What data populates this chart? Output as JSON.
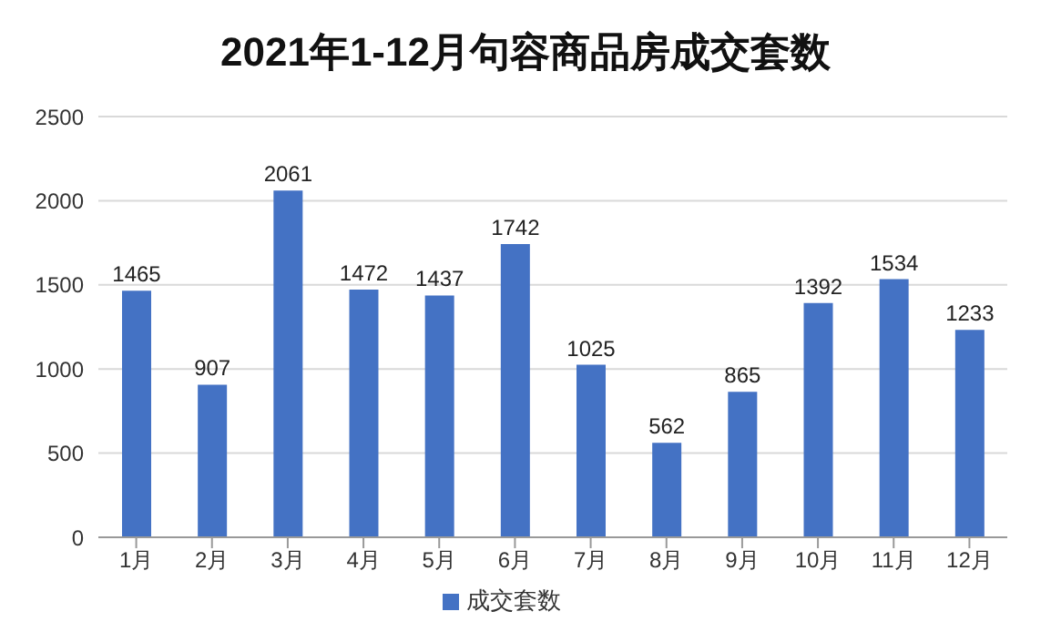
{
  "chart_data": {
    "type": "bar",
    "title": "2021年1-12月句容商品房成交套数",
    "categories": [
      "1月",
      "2月",
      "3月",
      "4月",
      "5月",
      "6月",
      "7月",
      "8月",
      "9月",
      "10月",
      "11月",
      "12月"
    ],
    "series": [
      {
        "name": "成交套数",
        "color": "#4472c4",
        "values": [
          1465,
          907,
          2061,
          1472,
          1437,
          1742,
          1025,
          562,
          865,
          1392,
          1534,
          1233
        ]
      }
    ],
    "ylim": [
      0,
      2500
    ],
    "yticks": [
      0,
      500,
      1000,
      1500,
      2000,
      2500
    ],
    "grid": "y",
    "legend": "bottom",
    "data_labels": true
  }
}
